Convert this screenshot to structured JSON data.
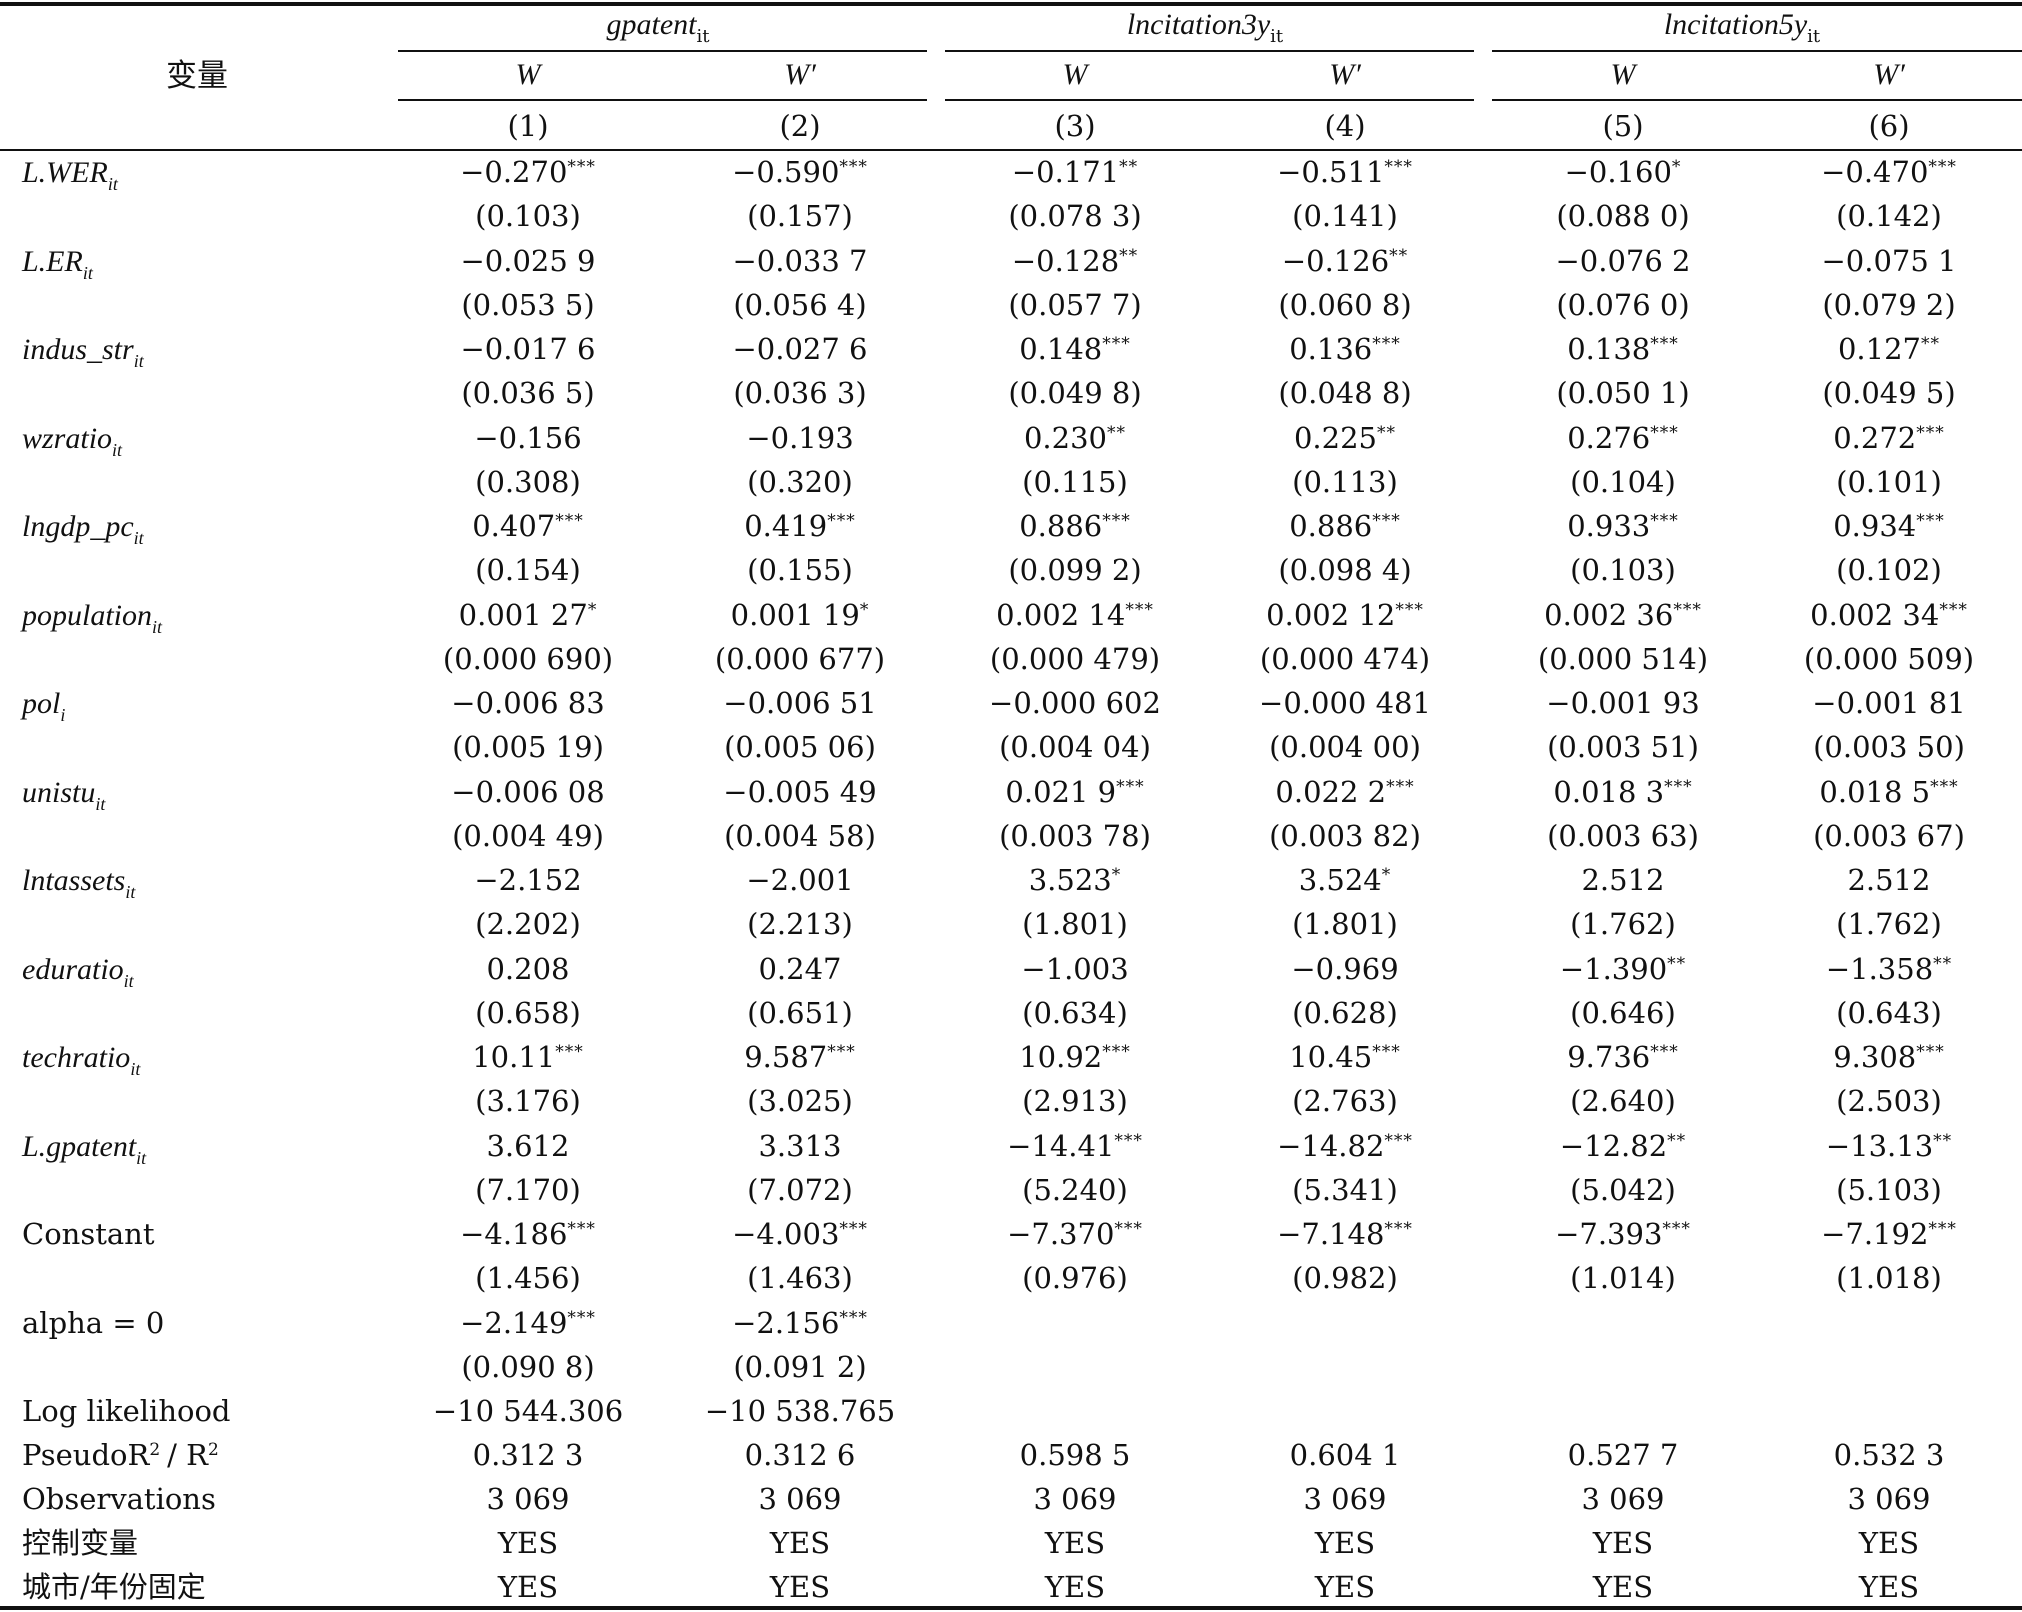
{
  "header": {
    "variable_label": "变量",
    "groups": [
      {
        "name": "gpatent",
        "sub": "it"
      },
      {
        "name": "lncitation3y",
        "sub": "it"
      },
      {
        "name": "lncitation5y",
        "sub": "it"
      }
    ],
    "weights": [
      "W",
      "W′",
      "W",
      "W′",
      "W",
      "W′"
    ],
    "col_nums": [
      "(1)",
      "(2)",
      "(3)",
      "(4)",
      "(5)",
      "(6)"
    ]
  },
  "rows": [
    {
      "name": "L.WER",
      "sub": "it",
      "italic": true,
      "est": [
        [
          "−0.270",
          "***"
        ],
        [
          "−0.590",
          "***"
        ],
        [
          "−0.171",
          "**"
        ],
        [
          "−0.511",
          "***"
        ],
        [
          "−0.160",
          "*"
        ],
        [
          "−0.470",
          "***"
        ]
      ],
      "se": [
        "(0.103)",
        "(0.157)",
        "(0.078 3)",
        "(0.141)",
        "(0.088 0)",
        "(0.142)"
      ]
    },
    {
      "name": "L.ER",
      "sub": "it",
      "italic": true,
      "est": [
        [
          "−0.025 9",
          ""
        ],
        [
          "−0.033 7",
          ""
        ],
        [
          "−0.128",
          "**"
        ],
        [
          "−0.126",
          "**"
        ],
        [
          "−0.076 2",
          ""
        ],
        [
          "−0.075 1",
          ""
        ]
      ],
      "se": [
        "(0.053 5)",
        "(0.056 4)",
        "(0.057 7)",
        "(0.060 8)",
        "(0.076 0)",
        "(0.079 2)"
      ]
    },
    {
      "name": "indus_str",
      "sub": "it",
      "italic": true,
      "est": [
        [
          "−0.017 6",
          ""
        ],
        [
          "−0.027 6",
          ""
        ],
        [
          "0.148",
          "***"
        ],
        [
          "0.136",
          "***"
        ],
        [
          "0.138",
          "***"
        ],
        [
          "0.127",
          "**"
        ]
      ],
      "se": [
        "(0.036 5)",
        "(0.036 3)",
        "(0.049 8)",
        "(0.048 8)",
        "(0.050 1)",
        "(0.049 5)"
      ]
    },
    {
      "name": "wzratio",
      "sub": "it",
      "italic": true,
      "est": [
        [
          "−0.156",
          ""
        ],
        [
          "−0.193",
          ""
        ],
        [
          "0.230",
          "**"
        ],
        [
          "0.225",
          "**"
        ],
        [
          "0.276",
          "***"
        ],
        [
          "0.272",
          "***"
        ]
      ],
      "se": [
        "(0.308)",
        "(0.320)",
        "(0.115)",
        "(0.113)",
        "(0.104)",
        "(0.101)"
      ]
    },
    {
      "name": "lngdp_pc",
      "sub": "it",
      "italic": true,
      "est": [
        [
          "0.407",
          "***"
        ],
        [
          "0.419",
          "***"
        ],
        [
          "0.886",
          "***"
        ],
        [
          "0.886",
          "***"
        ],
        [
          "0.933",
          "***"
        ],
        [
          "0.934",
          "***"
        ]
      ],
      "se": [
        "(0.154)",
        "(0.155)",
        "(0.099 2)",
        "(0.098 4)",
        "(0.103)",
        "(0.102)"
      ]
    },
    {
      "name": "population",
      "sub": "it",
      "italic": true,
      "est": [
        [
          "0.001 27",
          "*"
        ],
        [
          "0.001 19",
          "*"
        ],
        [
          "0.002 14",
          "***"
        ],
        [
          "0.002 12",
          "***"
        ],
        [
          "0.002 36",
          "***"
        ],
        [
          "0.002 34",
          "***"
        ]
      ],
      "se": [
        "(0.000 690)",
        "(0.000 677)",
        "(0.000 479)",
        "(0.000 474)",
        "(0.000 514)",
        "(0.000 509)"
      ]
    },
    {
      "name": "pol",
      "sub": "i",
      "italic": true,
      "est": [
        [
          "−0.006 83",
          ""
        ],
        [
          "−0.006 51",
          ""
        ],
        [
          "−0.000 602",
          ""
        ],
        [
          "−0.000 481",
          ""
        ],
        [
          "−0.001 93",
          ""
        ],
        [
          "−0.001 81",
          ""
        ]
      ],
      "se": [
        "(0.005 19)",
        "(0.005 06)",
        "(0.004 04)",
        "(0.004 00)",
        "(0.003 51)",
        "(0.003 50)"
      ]
    },
    {
      "name": "unistu",
      "sub": "it",
      "italic": true,
      "est": [
        [
          "−0.006 08",
          ""
        ],
        [
          "−0.005 49",
          ""
        ],
        [
          "0.021 9",
          "***"
        ],
        [
          "0.022 2",
          "***"
        ],
        [
          "0.018 3",
          "***"
        ],
        [
          "0.018 5",
          "***"
        ]
      ],
      "se": [
        "(0.004 49)",
        "(0.004 58)",
        "(0.003 78)",
        "(0.003 82)",
        "(0.003 63)",
        "(0.003 67)"
      ]
    },
    {
      "name": "lntassets",
      "sub": "it",
      "italic": true,
      "est": [
        [
          "−2.152",
          ""
        ],
        [
          "−2.001",
          ""
        ],
        [
          "3.523",
          "*"
        ],
        [
          "3.524",
          "*"
        ],
        [
          "2.512",
          ""
        ],
        [
          "2.512",
          ""
        ]
      ],
      "se": [
        "(2.202)",
        "(2.213)",
        "(1.801)",
        "(1.801)",
        "(1.762)",
        "(1.762)"
      ]
    },
    {
      "name": "eduratio",
      "sub": "it",
      "italic": true,
      "est": [
        [
          "0.208",
          ""
        ],
        [
          "0.247",
          ""
        ],
        [
          "−1.003",
          ""
        ],
        [
          "−0.969",
          ""
        ],
        [
          "−1.390",
          "**"
        ],
        [
          "−1.358",
          "**"
        ]
      ],
      "se": [
        "(0.658)",
        "(0.651)",
        "(0.634)",
        "(0.628)",
        "(0.646)",
        "(0.643)"
      ]
    },
    {
      "name": "techratio",
      "sub": "it",
      "italic": true,
      "est": [
        [
          "10.11",
          "***"
        ],
        [
          "9.587",
          "***"
        ],
        [
          "10.92",
          "***"
        ],
        [
          "10.45",
          "***"
        ],
        [
          "9.736",
          "***"
        ],
        [
          "9.308",
          "***"
        ]
      ],
      "se": [
        "(3.176)",
        "(3.025)",
        "(2.913)",
        "(2.763)",
        "(2.640)",
        "(2.503)"
      ]
    },
    {
      "name": "L.gpatent",
      "sub": "it",
      "italic": true,
      "est": [
        [
          "3.612",
          ""
        ],
        [
          "3.313",
          ""
        ],
        [
          "−14.41",
          "***"
        ],
        [
          "−14.82",
          "***"
        ],
        [
          "−12.82",
          "**"
        ],
        [
          "−13.13",
          "**"
        ]
      ],
      "se": [
        "(7.170)",
        "(7.072)",
        "(5.240)",
        "(5.341)",
        "(5.042)",
        "(5.103)"
      ]
    },
    {
      "name": "Constant",
      "sub": "",
      "italic": false,
      "est": [
        [
          "−4.186",
          "***"
        ],
        [
          "−4.003",
          "***"
        ],
        [
          "−7.370",
          "***"
        ],
        [
          "−7.148",
          "***"
        ],
        [
          "−7.393",
          "***"
        ],
        [
          "−7.192",
          "***"
        ]
      ],
      "se": [
        "(1.456)",
        "(1.463)",
        "(0.976)",
        "(0.982)",
        "(1.014)",
        "(1.018)"
      ]
    },
    {
      "name": "alpha = 0",
      "sub": "",
      "italic": false,
      "est": [
        [
          "−2.149",
          "***"
        ],
        [
          "−2.156",
          "***"
        ],
        [
          "",
          ""
        ],
        [
          "",
          ""
        ],
        [
          "",
          ""
        ],
        [
          "",
          ""
        ]
      ],
      "se": [
        "(0.090 8)",
        "(0.091 2)",
        "",
        "",
        "",
        ""
      ]
    }
  ],
  "stats": {
    "loglik_label": "Log likelihood",
    "loglik": [
      "−10 544.306",
      "−10 538.765",
      "",
      "",
      "",
      ""
    ],
    "r2_label_a": "PseudoR",
    "r2_label_b": "/ R",
    "r2_sup": "2",
    "r2": [
      "0.312 3",
      "0.312 6",
      "0.598 5",
      "0.604 1",
      "0.527 7",
      "0.532 3"
    ],
    "obs_label": "Observations",
    "obs": [
      "3 069",
      "3 069",
      "3 069",
      "3 069",
      "3 069",
      "3 069"
    ],
    "ctrl_label": "控制变量",
    "ctrl": [
      "YES",
      "YES",
      "YES",
      "YES",
      "YES",
      "YES"
    ],
    "fe_label": "城市/年份固定",
    "fe": [
      "YES",
      "YES",
      "YES",
      "YES",
      "YES",
      "YES"
    ]
  }
}
